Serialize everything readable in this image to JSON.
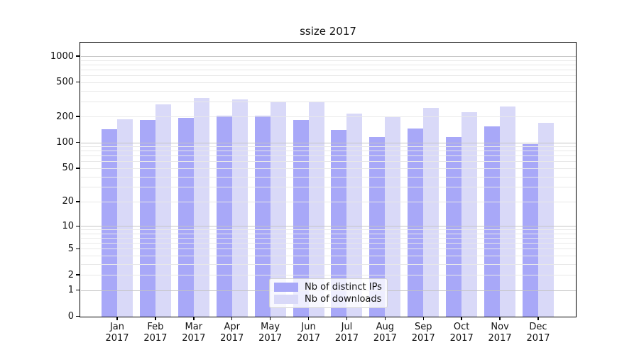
{
  "chart_data": {
    "type": "bar",
    "title": "ssize 2017",
    "categories": [
      "Jan 2017",
      "Feb 2017",
      "Mar 2017",
      "Apr 2017",
      "May 2017",
      "Jun 2017",
      "Jul 2017",
      "Aug 2017",
      "Sep 2017",
      "Oct 2017",
      "Nov 2017",
      "Dec 2017"
    ],
    "series": [
      {
        "name": "Nb of distinct IPs",
        "color": "#a8a8f8",
        "values": [
          143,
          181,
          194,
          206,
          203,
          181,
          141,
          116,
          144,
          115,
          153,
          96
        ]
      },
      {
        "name": "Nb of downloads",
        "color": "#d9d9f8",
        "values": [
          187,
          278,
          330,
          316,
          291,
          300,
          216,
          202,
          252,
          223,
          261,
          168
        ]
      }
    ],
    "xlabel": "",
    "ylabel": "",
    "y_axis": {
      "scale": "log1p",
      "ticks": [
        1000,
        500,
        200,
        100,
        50,
        20,
        10,
        5,
        2,
        1,
        0
      ],
      "major_gridlines": [
        1,
        10,
        100,
        1000
      ],
      "minor_gridlines": [
        2,
        3,
        4,
        5,
        6,
        7,
        8,
        9,
        20,
        30,
        40,
        50,
        60,
        70,
        80,
        90,
        200,
        300,
        400,
        500,
        600,
        700,
        800,
        900
      ],
      "ylim": [
        0,
        1430
      ]
    },
    "layout_hints": {
      "grid": true,
      "grid_above_bars": true,
      "legend_position": "lower center, inside plot",
      "background": "#ffffff",
      "major_grid_color": "#c4c4c4",
      "minor_grid_color": "#e8e8e8",
      "spine_color": "#000000",
      "text_color": "#111111"
    }
  }
}
